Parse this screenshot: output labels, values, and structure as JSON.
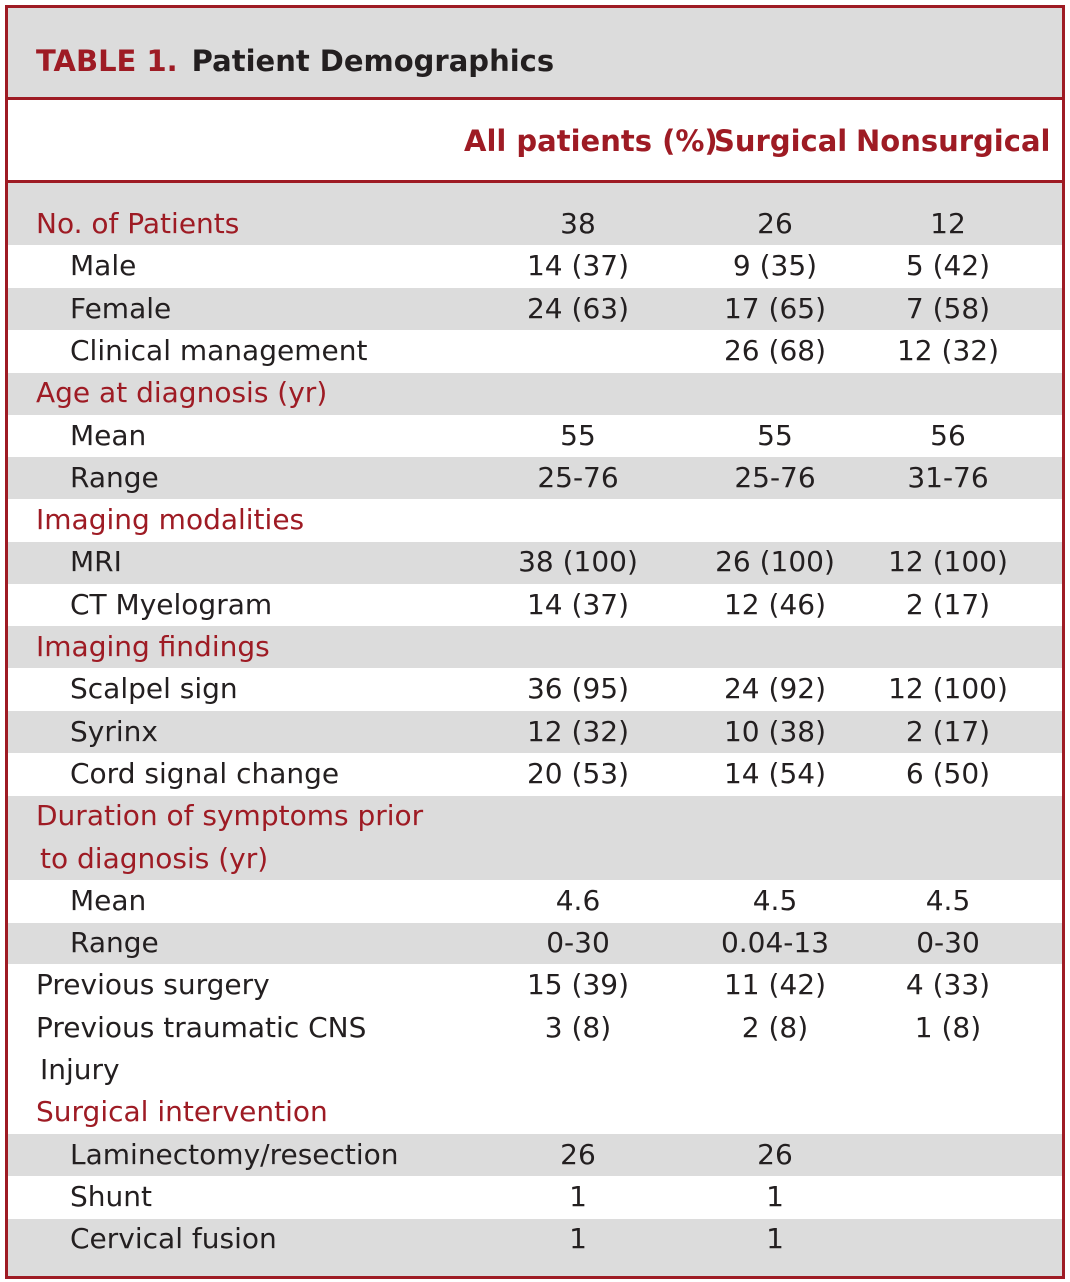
{
  "table": {
    "number": "TABLE 1.",
    "title": "Patient Demographics",
    "columns": [
      "All patients (%)",
      "Surgical",
      "Nonsurgical"
    ],
    "rows": [
      {
        "label": "No. of Patients",
        "kind": "cat",
        "values": [
          "38",
          "26",
          "12"
        ]
      },
      {
        "label": "Male",
        "kind": "indent",
        "values": [
          "14 (37)",
          "9 (35)",
          "5 (42)"
        ]
      },
      {
        "label": "Female",
        "kind": "indent",
        "values": [
          "24 (63)",
          "17 (65)",
          "7 (58)"
        ]
      },
      {
        "label": "Clinical management",
        "kind": "indent",
        "values": [
          "",
          "26 (68)",
          "12 (32)"
        ]
      },
      {
        "label": "Age at diagnosis (yr)",
        "kind": "cat",
        "values": [
          "",
          "",
          ""
        ]
      },
      {
        "label": "Mean",
        "kind": "indent",
        "values": [
          "55",
          "55",
          "56"
        ]
      },
      {
        "label": "Range",
        "kind": "indent",
        "values": [
          "25-76",
          "25-76",
          "31-76"
        ]
      },
      {
        "label": "Imaging modalities",
        "kind": "cat",
        "values": [
          "",
          "",
          ""
        ]
      },
      {
        "label": "MRI",
        "kind": "indent",
        "values": [
          "38 (100)",
          "26 (100)",
          "12 (100)"
        ]
      },
      {
        "label": "CT Myelogram",
        "kind": "indent",
        "values": [
          "14 (37)",
          "12 (46)",
          "2 (17)"
        ]
      },
      {
        "label": "Imaging findings",
        "kind": "cat",
        "values": [
          "",
          "",
          ""
        ]
      },
      {
        "label": "Scalpel sign",
        "kind": "indent",
        "values": [
          "36 (95)",
          "24 (92)",
          "12 (100)"
        ]
      },
      {
        "label": "Syrinx",
        "kind": "indent",
        "values": [
          "12 (32)",
          "10 (38)",
          "2 (17)"
        ]
      },
      {
        "label": "Cord signal change",
        "kind": "indent",
        "values": [
          "20 (53)",
          "14 (54)",
          "6 (50)"
        ]
      },
      {
        "label": "Duration of symptoms prior",
        "kind": "cat",
        "values": [
          "",
          "",
          ""
        ]
      },
      {
        "label": "to diagnosis (yr)",
        "kind": "catcont",
        "values": [
          "",
          "",
          ""
        ]
      },
      {
        "label": "Mean",
        "kind": "indent",
        "values": [
          "4.6",
          "4.5",
          "4.5"
        ]
      },
      {
        "label": "Range",
        "kind": "indent",
        "values": [
          "0-30",
          "0.04-13",
          "0-30"
        ]
      },
      {
        "label": "Previous surgery",
        "kind": "plain",
        "values": [
          "15 (39)",
          "11 (42)",
          "4 (33)"
        ]
      },
      {
        "label": "Previous traumatic CNS",
        "kind": "plain",
        "values": [
          "3 (8)",
          "2 (8)",
          "1 (8)"
        ]
      },
      {
        "label": "Injury",
        "kind": "cont",
        "values": [
          "",
          "",
          ""
        ]
      },
      {
        "label": "Surgical intervention",
        "kind": "cat",
        "values": [
          "",
          "",
          ""
        ]
      },
      {
        "label": "Laminectomy/resection",
        "kind": "indent",
        "values": [
          "26",
          "26",
          ""
        ]
      },
      {
        "label": "Shunt",
        "kind": "indent",
        "values": [
          "1",
          "1",
          ""
        ]
      },
      {
        "label": "Cervical fusion",
        "kind": "indent",
        "values": [
          "1",
          "1",
          ""
        ]
      }
    ]
  }
}
